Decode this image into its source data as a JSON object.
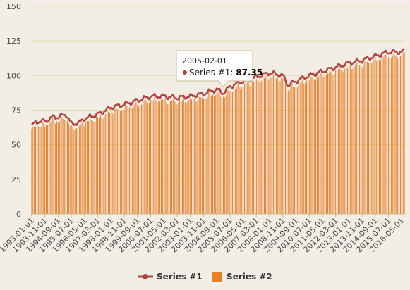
{
  "colors": {
    "series1": "#b5413d",
    "series2": "#e8802a",
    "grid": "#e6d9a8",
    "background": "#f2eee6"
  },
  "chart_data": {
    "type": "bar",
    "grid": true,
    "legend_position": "bottom-center",
    "ylim": [
      0,
      150
    ],
    "y_ticks": [
      0,
      25,
      50,
      75,
      100,
      125,
      150
    ],
    "x_tick_labels": [
      "1993-01-01",
      "1993-11-01",
      "1994-09-01",
      "1995-07-01",
      "1996-05-01",
      "1997-03-01",
      "1998-01-01",
      "1998-11-01",
      "1999-09-01",
      "2000-07-01",
      "2001-05-01",
      "2002-03-01",
      "2003-01-01",
      "2003-11-01",
      "2004-09-01",
      "2005-07-01",
      "2006-05-01",
      "2007-03-01",
      "2008-01-01",
      "2008-11-01",
      "2009-09-01",
      "2010-07-01",
      "2011-05-01",
      "2012-03-01",
      "2013-01-01",
      "2013-11-01",
      "2014-09-01",
      "2015-07-01",
      "2016-05-01"
    ],
    "x_start": "1993-01-01",
    "x_end": "2016-07-01",
    "x_frequency": "monthly",
    "series": [
      {
        "name": "Series #1",
        "type": "line",
        "anchors": [
          [
            "1993-01-01",
            64
          ],
          [
            "1993-06-01",
            67
          ],
          [
            "1993-11-01",
            67
          ],
          [
            "1994-05-01",
            70
          ],
          [
            "1994-09-01",
            70
          ],
          [
            "1995-03-01",
            72
          ],
          [
            "1995-07-01",
            65
          ],
          [
            "1996-01-01",
            66
          ],
          [
            "1996-05-01",
            69
          ],
          [
            "1997-03-01",
            72
          ],
          [
            "1998-01-01",
            77
          ],
          [
            "1998-11-01",
            79
          ],
          [
            "1999-09-01",
            82
          ],
          [
            "2000-07-01",
            85
          ],
          [
            "2001-05-01",
            85
          ],
          [
            "2002-03-01",
            84
          ],
          [
            "2003-01-01",
            85
          ],
          [
            "2003-11-01",
            87
          ],
          [
            "2004-09-01",
            90
          ],
          [
            "2005-02-01",
            87.35
          ],
          [
            "2005-07-01",
            92
          ],
          [
            "2006-05-01",
            96
          ],
          [
            "2007-03-01",
            99
          ],
          [
            "2008-01-01",
            102
          ],
          [
            "2008-11-01",
            100
          ],
          [
            "2009-03-01",
            93
          ],
          [
            "2009-09-01",
            96
          ],
          [
            "2010-07-01",
            100
          ],
          [
            "2011-05-01",
            103
          ],
          [
            "2012-03-01",
            106
          ],
          [
            "2013-01-01",
            109
          ],
          [
            "2013-11-01",
            111
          ],
          [
            "2014-09-01",
            114
          ],
          [
            "2015-07-01",
            117
          ],
          [
            "2016-05-01",
            117
          ],
          [
            "2016-07-01",
            118
          ]
        ]
      },
      {
        "name": "Series #2",
        "type": "bar",
        "offset_from_series1": -3
      }
    ]
  },
  "legend": {
    "series1": "Series #1",
    "series2": "Series #2"
  },
  "tooltip": {
    "date": "2005-02-01",
    "series": "Series #1",
    "value": "87.35"
  }
}
